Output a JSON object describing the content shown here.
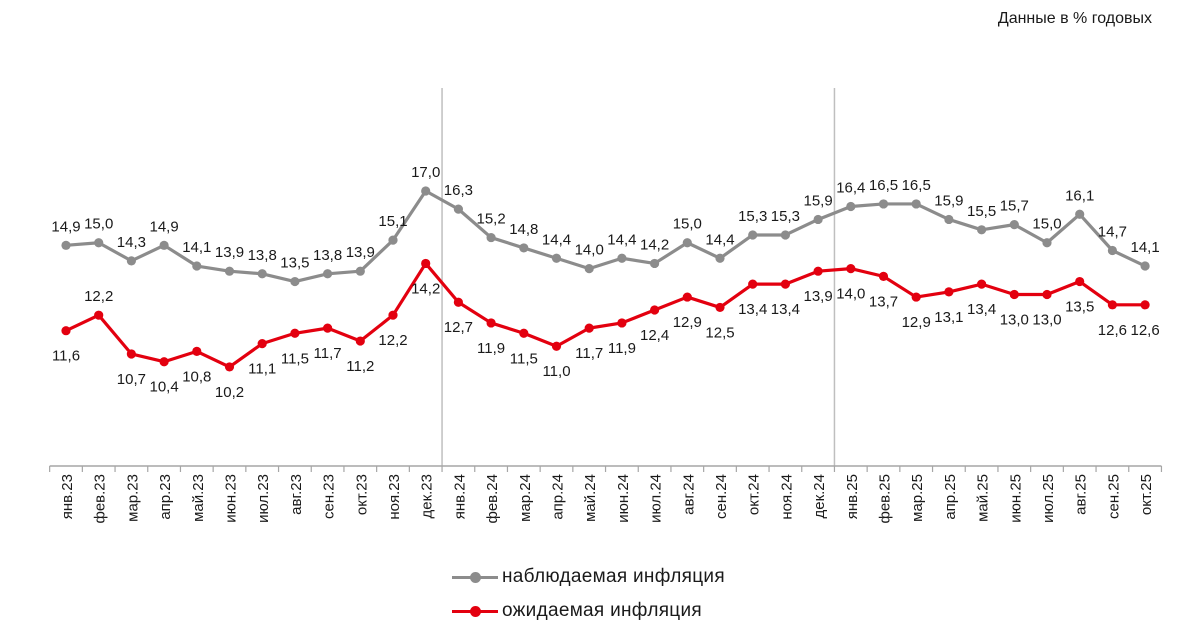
{
  "header": {
    "units_note": "Данные в % годовых"
  },
  "colors": {
    "observed": "#8c8c8c",
    "expected": "#e3000f",
    "axis": "#a6a6a6",
    "separator": "#bfbfbf",
    "text": "#1a1a1a"
  },
  "chart_data": {
    "type": "line",
    "categories": [
      "янв.23",
      "фев.23",
      "мар.23",
      "апр.23",
      "май.23",
      "июн.23",
      "июл.23",
      "авг.23",
      "сен.23",
      "окт.23",
      "ноя.23",
      "дек.23",
      "янв.24",
      "фев.24",
      "мар.24",
      "апр.24",
      "май.24",
      "июн.24",
      "июл.24",
      "авг.24",
      "сен.24",
      "окт.24",
      "ноя.24",
      "дек.24",
      "янв.25",
      "фев.25",
      "мар.25",
      "апр.25",
      "май.25",
      "июн.25",
      "июл.25",
      "авг.25",
      "сен.25",
      "окт.25"
    ],
    "series": [
      {
        "name": "наблюдаемая инфляция",
        "values": [
          14.9,
          15.0,
          14.3,
          14.9,
          14.1,
          13.9,
          13.8,
          13.5,
          13.8,
          13.9,
          15.1,
          17.0,
          16.3,
          15.2,
          14.8,
          14.4,
          14.0,
          14.4,
          14.2,
          15.0,
          14.4,
          15.3,
          15.3,
          15.9,
          16.4,
          16.5,
          16.5,
          15.9,
          15.5,
          15.7,
          15.0,
          16.1,
          14.7,
          14.1
        ],
        "labels": [
          "14,9",
          "15,0",
          "14,3",
          "14,9",
          "14,1",
          "13,9",
          "13,8",
          "13,5",
          "13,8",
          "13,9",
          "15,1",
          "17,0",
          "16,3",
          "15,2",
          "14,8",
          "14,4",
          "14,0",
          "14,4",
          "14,2",
          "15,0",
          "14,4",
          "15,3",
          "15,3",
          "15,9",
          "16,4",
          "16,5",
          "16,5",
          "15,9",
          "15,5",
          "15,7",
          "15,0",
          "16,1",
          "14,7",
          "14,1"
        ]
      },
      {
        "name": "ожидаемая инфляция",
        "values": [
          11.6,
          12.2,
          10.7,
          10.4,
          10.8,
          10.2,
          11.1,
          11.5,
          11.7,
          11.2,
          12.2,
          14.2,
          12.7,
          11.9,
          11.5,
          11.0,
          11.7,
          11.9,
          12.4,
          12.9,
          12.5,
          13.4,
          13.4,
          13.9,
          14.0,
          13.7,
          12.9,
          13.1,
          13.4,
          13.0,
          13.0,
          13.5,
          12.6,
          12.6
        ],
        "labels": [
          "11,6",
          "12,2",
          "10,7",
          "10,4",
          "10,8",
          "10,2",
          "11,1",
          "11,5",
          "11,7",
          "11,2",
          "12,2",
          "14,2",
          "12,7",
          "11,9",
          "11,5",
          "11,0",
          "11,7",
          "11,9",
          "12,4",
          "12,9",
          "12,5",
          "13,4",
          "13,4",
          "13,9",
          "14,0",
          "13,7",
          "12,9",
          "13,1",
          "13,4",
          "13,0",
          "13,0",
          "13,5",
          "12,6",
          "12,6"
        ]
      }
    ],
    "year_separators_after": [
      "дек.23",
      "дек.24"
    ],
    "ylim": [
      7.0,
      18.5
    ],
    "y_axis_visible": false,
    "grid": false,
    "legend_position": "bottom-center"
  },
  "legend": [
    {
      "label": "наблюдаемая инфляция",
      "color": "#8c8c8c"
    },
    {
      "label": "ожидаемая инфляция",
      "color": "#e3000f"
    }
  ]
}
